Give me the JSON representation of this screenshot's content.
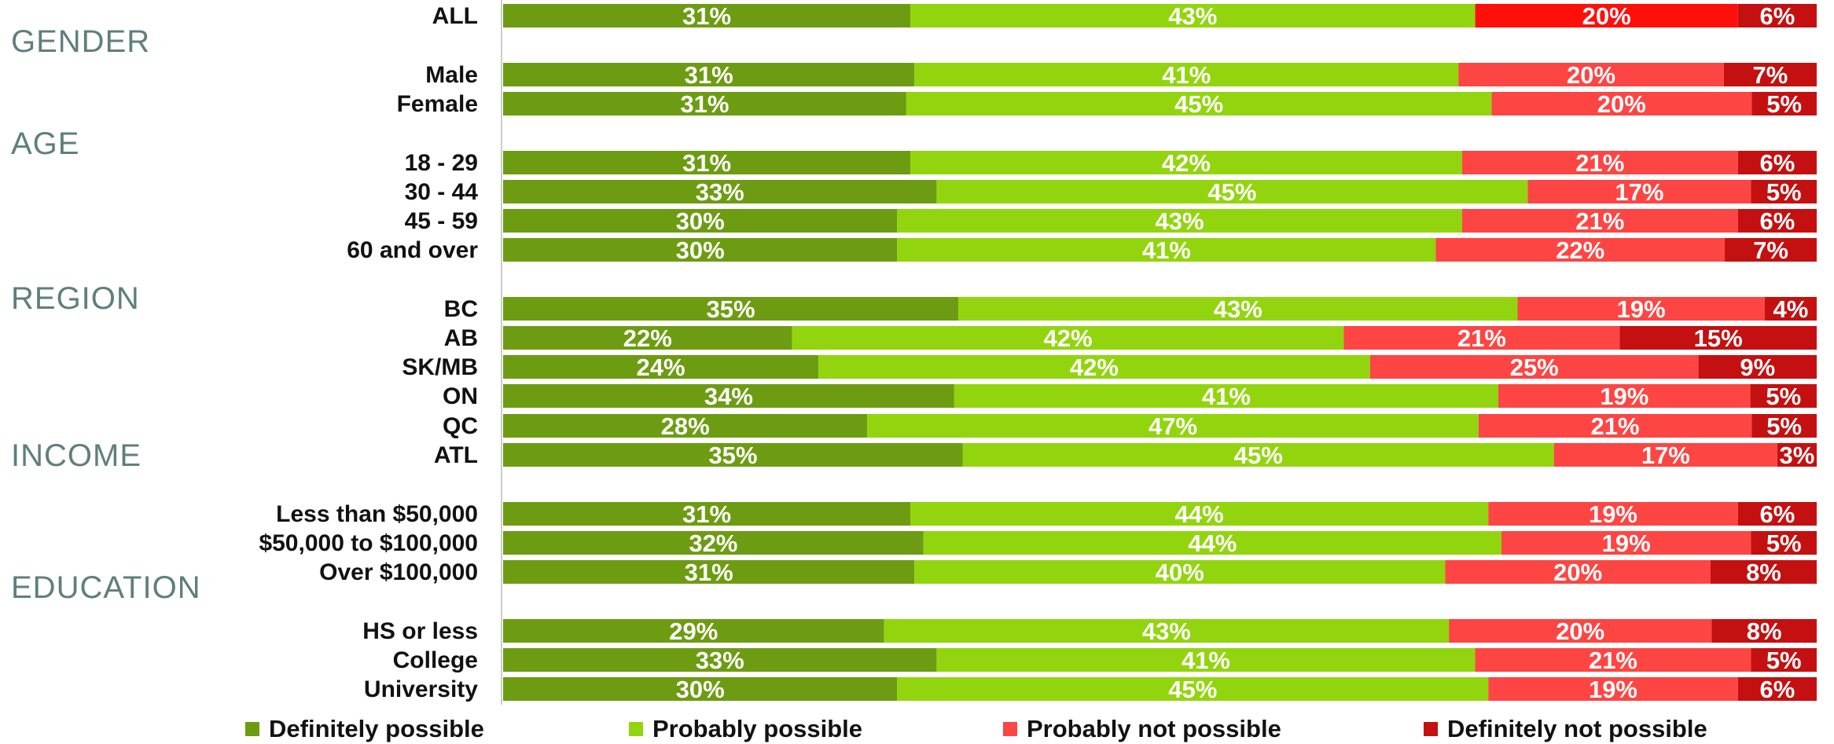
{
  "chart_data": {
    "type": "bar",
    "orientation": "horizontal",
    "stacked": true,
    "normalized": true,
    "groups": [
      "GENDER",
      "AGE",
      "REGION",
      "INCOME",
      "EDUCATION"
    ],
    "categories": [
      "ALL",
      "Male",
      "Female",
      "18 - 29",
      "30 - 44",
      "45 - 59",
      "60 and over",
      "BC",
      "AB",
      "SK/MB",
      "ON",
      "QC",
      "ATL",
      "Less than $50,000",
      "$50,000 to $100,000",
      "Over $100,000",
      "HS or less",
      "College",
      "University"
    ],
    "series": [
      {
        "name": "Definitely possible",
        "color": "#6d9c12",
        "values": [
          31,
          31,
          31,
          31,
          33,
          30,
          30,
          35,
          22,
          24,
          34,
          28,
          35,
          31,
          32,
          31,
          29,
          33,
          30
        ]
      },
      {
        "name": "Probably possible",
        "color": "#92d50e",
        "values": [
          43,
          41,
          45,
          42,
          45,
          43,
          41,
          43,
          42,
          42,
          41,
          47,
          45,
          44,
          44,
          40,
          43,
          41,
          45
        ]
      },
      {
        "name": "Probably not possible",
        "color": "#fd4543",
        "values": [
          20,
          20,
          20,
          21,
          17,
          21,
          22,
          19,
          21,
          25,
          19,
          21,
          17,
          19,
          19,
          20,
          20,
          21,
          19
        ]
      },
      {
        "name": "Definitely not possible",
        "color": "#c41010",
        "values": [
          6,
          7,
          5,
          6,
          5,
          6,
          7,
          4,
          15,
          9,
          5,
          5,
          3,
          6,
          5,
          8,
          8,
          5,
          6
        ]
      }
    ],
    "all_row_colors": [
      "#6d9c12",
      "#92d50e",
      "#fe0f0a",
      "#c41010"
    ],
    "value_suffix": "%",
    "legend": "bottom"
  }
}
